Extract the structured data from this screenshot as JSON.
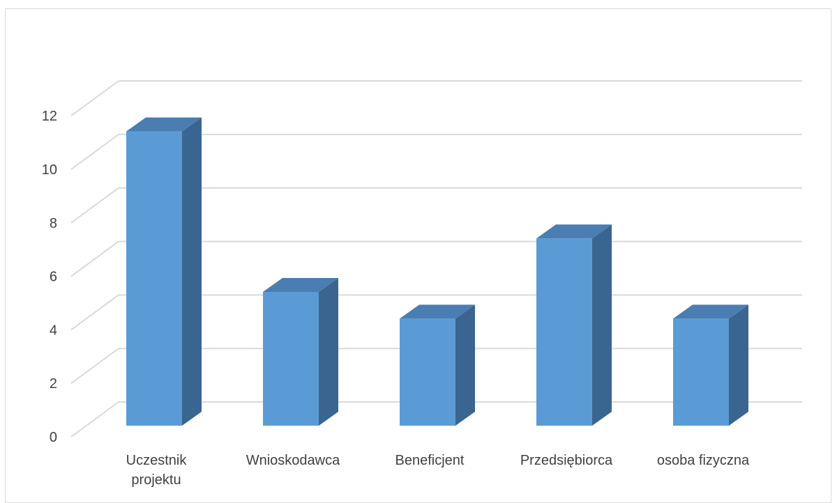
{
  "chart_data": {
    "type": "bar",
    "style": "3d-column",
    "title": "",
    "xlabel": "",
    "ylabel": "",
    "categories": [
      [
        "Uczestnik",
        "projektu"
      ],
      [
        "Wnioskodawca"
      ],
      [
        "Beneficjent"
      ],
      [
        "Przedsiębiorca"
      ],
      [
        "osoba fizyczna"
      ]
    ],
    "values": [
      11,
      5,
      4,
      7,
      4
    ],
    "ylim": [
      0,
      12
    ],
    "yticks": [
      "0",
      "2",
      "4",
      "6",
      "8",
      "10",
      "12"
    ],
    "grid": true,
    "legend": "none",
    "colors": {
      "bar_front": "#5b9bd5",
      "bar_top": "#4a7db2",
      "bar_side": "#3a6590",
      "grid": "#d9d9d9",
      "text": "#404040"
    }
  }
}
